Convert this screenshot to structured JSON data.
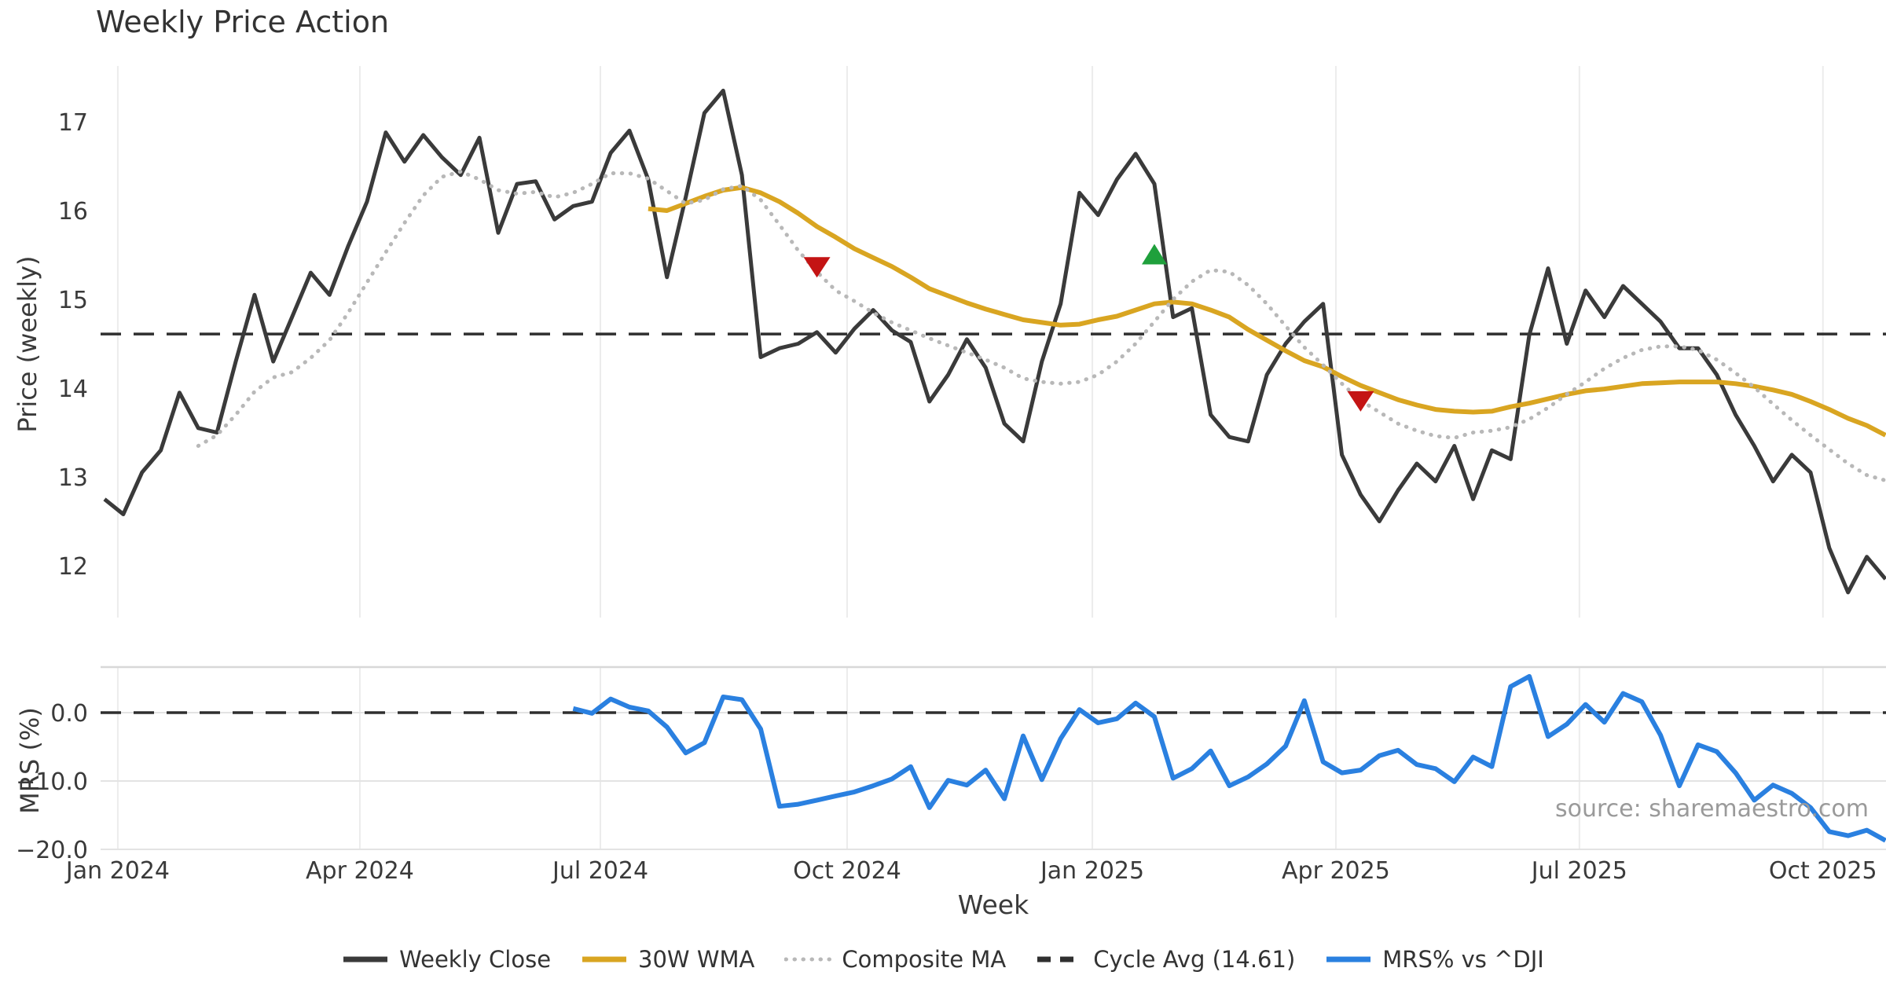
{
  "title": "Weekly Price Action",
  "source_note": "source: sharemaestro.com",
  "axes": {
    "price_ylabel": "Price (weekly)",
    "mrs_ylabel": "MRS (%)",
    "xlabel": "Week",
    "price_yticks": [
      "17",
      "16",
      "15",
      "14",
      "13",
      "12"
    ],
    "price_ytick_values": [
      17,
      16,
      15,
      14,
      13,
      12
    ],
    "mrs_yticks": [
      "0.0",
      "−10.0",
      "−20.0"
    ],
    "mrs_ytick_values": [
      0,
      -10,
      -20
    ],
    "x_ticks": [
      {
        "label": "Jan 2024",
        "week": 0.71
      },
      {
        "label": "Apr 2024",
        "week": 13.62
      },
      {
        "label": "Jul 2024",
        "week": 26.45
      },
      {
        "label": "Oct 2024",
        "week": 39.61
      },
      {
        "label": "Jan 2025",
        "week": 52.69
      },
      {
        "label": "Apr 2025",
        "week": 65.68
      },
      {
        "label": "Jul 2025",
        "week": 78.67
      },
      {
        "label": "Oct 2025",
        "week": 91.66
      }
    ]
  },
  "colors": {
    "close": "#3a3a3a",
    "wma": "#d9a521",
    "composite": "#b8b8b8",
    "cycle": "#2f2f2f",
    "mrs": "#2a80e0",
    "marker_down": "#c41414",
    "marker_up": "#1fa03c",
    "grid": "#ececec",
    "grid2": "#e3e3e3",
    "panel_border": "#d8d8d8"
  },
  "chart_data": {
    "type": "line",
    "n_weeks": 96,
    "panels": [
      {
        "ylabel": "Price (weekly)",
        "ylim": [
          11.42,
          17.63
        ],
        "grid": "vertical-only"
      },
      {
        "ylabel": "MRS (%)",
        "ylim": [
          -20.5,
          6.7
        ],
        "grid": "both"
      }
    ],
    "series": [
      {
        "name": "Weekly Close",
        "panel": 0,
        "style": "solid",
        "color": "#3a3a3a",
        "start_week": 0,
        "values": [
          12.75,
          12.58,
          13.05,
          13.3,
          13.95,
          13.55,
          13.5,
          14.3,
          15.05,
          14.3,
          14.8,
          15.3,
          15.05,
          15.6,
          16.1,
          16.88,
          16.55,
          16.85,
          16.6,
          16.4,
          16.82,
          15.75,
          16.3,
          16.33,
          15.9,
          16.05,
          16.1,
          16.65,
          16.9,
          16.35,
          15.25,
          16.15,
          17.1,
          17.35,
          16.4,
          14.35,
          14.45,
          14.5,
          14.63,
          14.4,
          14.67,
          14.88,
          14.65,
          14.52,
          13.85,
          14.15,
          14.55,
          14.23,
          13.6,
          13.4,
          14.3,
          14.95,
          16.2,
          15.95,
          16.35,
          16.64,
          16.3,
          14.8,
          14.9,
          13.7,
          13.45,
          13.4,
          14.15,
          14.5,
          14.75,
          14.95,
          13.25,
          12.8,
          12.5,
          12.85,
          13.15,
          12.95,
          13.35,
          12.75,
          13.3,
          13.2,
          14.6,
          15.35,
          14.5,
          15.1,
          14.8,
          15.15,
          14.95,
          14.75,
          14.45,
          14.45,
          14.15,
          13.7,
          13.35,
          12.95,
          13.25,
          13.05,
          12.2,
          11.7,
          12.1,
          11.85
        ]
      },
      {
        "name": "30W WMA",
        "panel": 0,
        "style": "solid",
        "color": "#d9a521",
        "start_week": 29,
        "values": [
          16.02,
          16.0,
          16.08,
          16.16,
          16.23,
          16.26,
          16.2,
          16.1,
          15.97,
          15.82,
          15.7,
          15.57,
          15.47,
          15.37,
          15.25,
          15.12,
          15.04,
          14.96,
          14.89,
          14.83,
          14.77,
          14.74,
          14.71,
          14.72,
          14.77,
          14.81,
          14.88,
          14.95,
          14.97,
          14.95,
          14.88,
          14.8,
          14.66,
          14.54,
          14.42,
          14.31,
          14.24,
          14.13,
          14.03,
          13.95,
          13.87,
          13.81,
          13.76,
          13.74,
          13.73,
          13.74,
          13.79,
          13.83,
          13.88,
          13.93,
          13.97,
          13.99,
          14.02,
          14.05,
          14.06,
          14.07,
          14.07,
          14.07,
          14.05,
          14.02,
          13.98,
          13.93,
          13.85,
          13.76,
          13.66,
          13.58,
          13.47
        ]
      },
      {
        "name": "Composite MA",
        "panel": 0,
        "style": "dotted",
        "color": "#b8b8b8",
        "start_week": 5,
        "values": [
          13.35,
          13.47,
          13.7,
          13.96,
          14.12,
          14.18,
          14.34,
          14.54,
          14.85,
          15.19,
          15.53,
          15.86,
          16.17,
          16.38,
          16.44,
          16.35,
          16.23,
          16.19,
          16.21,
          16.15,
          16.2,
          16.3,
          16.42,
          16.42,
          16.36,
          16.22,
          16.08,
          16.12,
          16.24,
          16.28,
          16.12,
          15.84,
          15.55,
          15.31,
          15.1,
          14.98,
          14.85,
          14.74,
          14.65,
          14.56,
          14.48,
          14.4,
          14.32,
          14.23,
          14.11,
          14.07,
          14.05,
          14.07,
          14.15,
          14.3,
          14.5,
          14.75,
          15.0,
          15.2,
          15.33,
          15.31,
          15.16,
          14.95,
          14.7,
          14.46,
          14.26,
          14.05,
          13.86,
          13.73,
          13.6,
          13.52,
          13.46,
          13.44,
          13.5,
          13.52,
          13.56,
          13.65,
          13.78,
          13.93,
          14.07,
          14.22,
          14.34,
          14.43,
          14.47,
          14.47,
          14.43,
          14.32,
          14.17,
          14.01,
          13.82,
          13.64,
          13.47,
          13.31,
          13.15,
          13.02,
          12.96
        ]
      },
      {
        "name": "Cycle Avg (14.61)",
        "panel": 0,
        "style": "dashed",
        "color": "#2f2f2f",
        "hline": 14.61
      },
      {
        "name": "MRS% vs ^DJI",
        "panel": 1,
        "style": "solid",
        "color": "#2a80e0",
        "start_week": 25,
        "values": [
          0.6,
          -0.1,
          2.0,
          0.8,
          0.25,
          -2.1,
          -5.9,
          -4.4,
          2.3,
          1.9,
          -2.4,
          -13.7,
          -13.4,
          -12.8,
          -12.2,
          -11.6,
          -10.7,
          -9.7,
          -7.9,
          -13.9,
          -9.9,
          -10.6,
          -8.4,
          -12.6,
          -3.4,
          -9.8,
          -3.8,
          0.45,
          -1.5,
          -0.9,
          1.4,
          -0.6,
          -9.6,
          -8.2,
          -5.6,
          -10.7,
          -9.4,
          -7.5,
          -4.9,
          1.75,
          -7.2,
          -8.8,
          -8.4,
          -6.3,
          -5.5,
          -7.6,
          -8.2,
          -10.1,
          -6.5,
          -7.9,
          3.8,
          5.3,
          -3.5,
          -1.7,
          1.2,
          -1.4,
          2.8,
          1.6,
          -3.3,
          -10.7,
          -4.7,
          -5.7,
          -8.8,
          -12.8,
          -10.6,
          -11.8,
          -13.9,
          -17.4,
          -18.0,
          -17.2,
          -18.7
        ]
      }
    ],
    "hlines": [
      {
        "panel": 0,
        "value": 14.61,
        "style": "dashed",
        "color": "#2f2f2f"
      },
      {
        "panel": 1,
        "value": 0.0,
        "style": "dashed",
        "color": "#2f2f2f"
      }
    ],
    "markers": [
      {
        "shape": "triangle-down",
        "color": "#c41414",
        "week": 38,
        "value": 15.37
      },
      {
        "shape": "triangle-up",
        "color": "#1fa03c",
        "week": 56,
        "value": 15.5
      },
      {
        "shape": "triangle-down",
        "color": "#c41414",
        "week": 67,
        "value": 13.86
      }
    ]
  },
  "legend": {
    "items": [
      {
        "label": "Weekly Close",
        "color": "#3a3a3a",
        "style": "solid"
      },
      {
        "label": "30W WMA",
        "color": "#d9a521",
        "style": "solid"
      },
      {
        "label": "Composite MA",
        "color": "#b8b8b8",
        "style": "dotted"
      },
      {
        "label": "Cycle Avg (14.61)",
        "color": "#2f2f2f",
        "style": "dashed"
      },
      {
        "label": "MRS% vs ^DJI",
        "color": "#2a80e0",
        "style": "solid"
      }
    ]
  }
}
